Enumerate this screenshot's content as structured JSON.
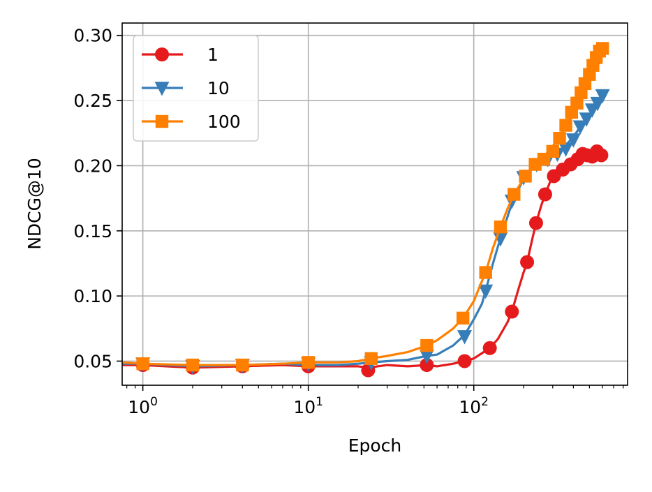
{
  "chart_data": {
    "type": "line",
    "title": "",
    "xlabel": "Epoch",
    "ylabel": "NDCG@10",
    "xscale": "log",
    "xlim": [
      0.75,
      850
    ],
    "ylim": [
      0.0315,
      0.3095
    ],
    "grid": true,
    "legend_placement": "top-left",
    "x_ticks": [
      {
        "value": 1,
        "base": "10",
        "exp": "0"
      },
      {
        "value": 10,
        "base": "10",
        "exp": "1"
      },
      {
        "value": 100,
        "base": "10",
        "exp": "2"
      }
    ],
    "y_ticks": [
      {
        "value": 0.05,
        "label": "0.05"
      },
      {
        "value": 0.1,
        "label": "0.10"
      },
      {
        "value": 0.15,
        "label": "0.15"
      },
      {
        "value": 0.2,
        "label": "0.20"
      },
      {
        "value": 0.25,
        "label": "0.25"
      },
      {
        "value": 0.3,
        "label": "0.30"
      }
    ],
    "series": [
      {
        "name": "1",
        "color": "#e41a1c",
        "marker": "circle",
        "line": [
          [
            0.75,
            0.047
          ],
          [
            1,
            0.047
          ],
          [
            2,
            0.045
          ],
          [
            4,
            0.046
          ],
          [
            7,
            0.047
          ],
          [
            10,
            0.046
          ],
          [
            15,
            0.046
          ],
          [
            20,
            0.046
          ],
          [
            23,
            0.045
          ],
          [
            30,
            0.047
          ],
          [
            40,
            0.046
          ],
          [
            52,
            0.047
          ],
          [
            60,
            0.046
          ],
          [
            75,
            0.048
          ],
          [
            88,
            0.05
          ],
          [
            100,
            0.052
          ],
          [
            115,
            0.057
          ],
          [
            125,
            0.06
          ],
          [
            140,
            0.067
          ],
          [
            160,
            0.08
          ],
          [
            170,
            0.088
          ],
          [
            185,
            0.104
          ],
          [
            200,
            0.118
          ],
          [
            210,
            0.126
          ],
          [
            225,
            0.143
          ],
          [
            238,
            0.156
          ],
          [
            255,
            0.169
          ],
          [
            270,
            0.178
          ],
          [
            290,
            0.188
          ],
          [
            305,
            0.192
          ],
          [
            330,
            0.195
          ],
          [
            360,
            0.198
          ],
          [
            400,
            0.203
          ],
          [
            420,
            0.205
          ],
          [
            450,
            0.207
          ],
          [
            480,
            0.208
          ],
          [
            510,
            0.209
          ],
          [
            540,
            0.21
          ],
          [
            570,
            0.209
          ],
          [
            600,
            0.208
          ]
        ],
        "markers": [
          [
            1,
            0.047
          ],
          [
            2,
            0.045
          ],
          [
            4,
            0.046
          ],
          [
            10,
            0.046
          ],
          [
            23,
            0.043
          ],
          [
            52,
            0.047
          ],
          [
            88,
            0.05
          ],
          [
            125,
            0.06
          ],
          [
            170,
            0.088
          ],
          [
            210,
            0.126
          ],
          [
            238,
            0.156
          ],
          [
            270,
            0.178
          ],
          [
            305,
            0.192
          ],
          [
            345,
            0.197
          ],
          [
            385,
            0.201
          ],
          [
            425,
            0.205
          ],
          [
            455,
            0.209
          ],
          [
            485,
            0.208
          ],
          [
            520,
            0.207
          ],
          [
            555,
            0.211
          ],
          [
            590,
            0.208
          ]
        ]
      },
      {
        "name": "10",
        "color": "#377eb8",
        "marker": "triangle-down",
        "line": [
          [
            0.75,
            0.048
          ],
          [
            1,
            0.048
          ],
          [
            2,
            0.046
          ],
          [
            4,
            0.047
          ],
          [
            7,
            0.048
          ],
          [
            10,
            0.047
          ],
          [
            15,
            0.047
          ],
          [
            20,
            0.048
          ],
          [
            24,
            0.049
          ],
          [
            30,
            0.05
          ],
          [
            40,
            0.051
          ],
          [
            52,
            0.054
          ],
          [
            60,
            0.055
          ],
          [
            75,
            0.062
          ],
          [
            88,
            0.07
          ],
          [
            100,
            0.082
          ],
          [
            112,
            0.094
          ],
          [
            118,
            0.104
          ],
          [
            130,
            0.124
          ],
          [
            140,
            0.138
          ],
          [
            150,
            0.15
          ],
          [
            165,
            0.166
          ],
          [
            180,
            0.178
          ],
          [
            200,
            0.19
          ],
          [
            220,
            0.197
          ],
          [
            240,
            0.201
          ],
          [
            260,
            0.203
          ],
          [
            290,
            0.206
          ],
          [
            320,
            0.21
          ],
          [
            350,
            0.214
          ],
          [
            380,
            0.219
          ],
          [
            420,
            0.226
          ],
          [
            450,
            0.232
          ],
          [
            480,
            0.236
          ],
          [
            510,
            0.24
          ],
          [
            540,
            0.244
          ],
          [
            570,
            0.249
          ],
          [
            600,
            0.254
          ]
        ],
        "markers": [
          [
            1,
            0.048
          ],
          [
            2,
            0.046
          ],
          [
            4,
            0.047
          ],
          [
            10,
            0.048
          ],
          [
            24,
            0.049
          ],
          [
            52,
            0.054
          ],
          [
            88,
            0.069
          ],
          [
            118,
            0.104
          ],
          [
            145,
            0.144
          ],
          [
            170,
            0.173
          ],
          [
            200,
            0.191
          ],
          [
            240,
            0.201
          ],
          [
            280,
            0.205
          ],
          [
            320,
            0.209
          ],
          [
            360,
            0.213
          ],
          [
            400,
            0.22
          ],
          [
            440,
            0.23
          ],
          [
            480,
            0.236
          ],
          [
            520,
            0.243
          ],
          [
            560,
            0.248
          ],
          [
            600,
            0.254
          ]
        ]
      },
      {
        "name": "100",
        "color": "#ff7f00",
        "marker": "square",
        "line": [
          [
            0.75,
            0.049
          ],
          [
            1,
            0.048
          ],
          [
            2,
            0.047
          ],
          [
            4,
            0.047
          ],
          [
            7,
            0.048
          ],
          [
            10,
            0.049
          ],
          [
            15,
            0.049
          ],
          [
            20,
            0.05
          ],
          [
            24,
            0.052
          ],
          [
            30,
            0.054
          ],
          [
            40,
            0.057
          ],
          [
            52,
            0.062
          ],
          [
            60,
            0.066
          ],
          [
            75,
            0.075
          ],
          [
            86,
            0.083
          ],
          [
            100,
            0.096
          ],
          [
            110,
            0.109
          ],
          [
            118,
            0.118
          ],
          [
            130,
            0.136
          ],
          [
            145,
            0.153
          ],
          [
            160,
            0.167
          ],
          [
            175,
            0.178
          ],
          [
            200,
            0.19
          ],
          [
            220,
            0.197
          ],
          [
            240,
            0.202
          ],
          [
            270,
            0.208
          ],
          [
            300,
            0.215
          ],
          [
            330,
            0.222
          ],
          [
            360,
            0.23
          ],
          [
            390,
            0.239
          ],
          [
            420,
            0.248
          ],
          [
            450,
            0.256
          ],
          [
            480,
            0.265
          ],
          [
            510,
            0.273
          ],
          [
            540,
            0.28
          ],
          [
            570,
            0.287
          ],
          [
            600,
            0.291
          ]
        ],
        "markers": [
          [
            1,
            0.048
          ],
          [
            2,
            0.047
          ],
          [
            4,
            0.047
          ],
          [
            10,
            0.049
          ],
          [
            24,
            0.052
          ],
          [
            52,
            0.062
          ],
          [
            86,
            0.083
          ],
          [
            118,
            0.118
          ],
          [
            145,
            0.153
          ],
          [
            175,
            0.178
          ],
          [
            205,
            0.192
          ],
          [
            235,
            0.201
          ],
          [
            265,
            0.205
          ],
          [
            300,
            0.211
          ],
          [
            330,
            0.221
          ],
          [
            360,
            0.231
          ],
          [
            390,
            0.241
          ],
          [
            420,
            0.248
          ],
          [
            445,
            0.256
          ],
          [
            470,
            0.263
          ],
          [
            500,
            0.27
          ],
          [
            525,
            0.277
          ],
          [
            550,
            0.283
          ],
          [
            575,
            0.288
          ],
          [
            600,
            0.29
          ]
        ]
      }
    ]
  }
}
